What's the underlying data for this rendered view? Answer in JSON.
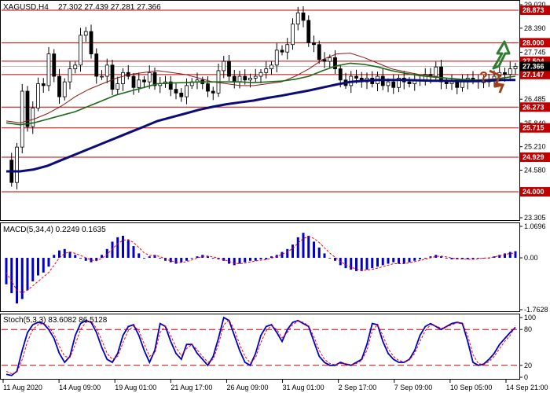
{
  "header": {
    "symbol": "XAGUSD,H4",
    "ohlc": "27.302 27.439 27.281 27.366"
  },
  "colors": {
    "candles": "#000000",
    "ma_fast": "#8b1a1a",
    "ma_mid": "#1a6b1a",
    "ma_slow": "#0b0b7a",
    "resistance": "#c00000",
    "price_tag": "#000000",
    "macd_hist": "#0000c8",
    "macd_signal": "#ff0000",
    "stoch_main": "#0000c8",
    "stoch_signal": "#ff0000",
    "arrow_up": "#2e7d32",
    "arrow_down": "#a0401a",
    "question": "#a0401a"
  },
  "chart_data": [
    {
      "type": "candlestick",
      "panel": "price",
      "title": "XAGUSD,H4",
      "ohlc_last": {
        "open": 27.302,
        "high": 27.439,
        "low": 27.281,
        "close": 27.366
      },
      "yticks": [
        "29.020",
        "28.390",
        "27.745",
        "27.100",
        "26.485",
        "25.840",
        "25.210",
        "24.580",
        "23.950",
        "23.305"
      ],
      "ylim": [
        23.305,
        29.02
      ],
      "levels": [
        {
          "value": 28.873,
          "label": "28.873"
        },
        {
          "value": 28.0,
          "label": "28.000"
        },
        {
          "value": 27.504,
          "label": "27.504"
        },
        {
          "value": 27.147,
          "label": "27.147"
        },
        {
          "value": 26.273,
          "label": "26.273"
        },
        {
          "value": 25.715,
          "label": "25.715"
        },
        {
          "value": 24.929,
          "label": "24.929"
        },
        {
          "value": 24.0,
          "label": "24.000"
        }
      ],
      "current_price": {
        "value": 27.366,
        "label": "27.366"
      },
      "xticks": [
        "11 Aug 2020",
        "14 Aug 09:00",
        "19 Aug 01:00",
        "21 Aug 17:00",
        "26 Aug 09:00",
        "31 Aug 01:00",
        "2 Sep 17:00",
        "7 Sep 09:00",
        "10 Sep 05:00",
        "14 Sep 21:00"
      ],
      "close_path": [
        24.85,
        24.25,
        25.2,
        26.7,
        25.75,
        26.25,
        26.9,
        26.85,
        27.7,
        27.1,
        26.55,
        26.95,
        27.3,
        27.4,
        28.2,
        28.3,
        27.7,
        27.1,
        27.1,
        27.4,
        26.75,
        26.9,
        27.2,
        27.1,
        26.8,
        27.0,
        26.95,
        27.2,
        26.85,
        26.9,
        26.95,
        26.75,
        26.65,
        26.55,
        26.85,
        26.95,
        27.0,
        26.9,
        26.7,
        26.65,
        27.25,
        27.5,
        27.1,
        26.95,
        27.1,
        27.0,
        27.05,
        27.1,
        27.2,
        27.3,
        27.4,
        27.8,
        27.75,
        27.95,
        28.5,
        28.8,
        28.6,
        28.0,
        27.95,
        27.55,
        27.5,
        27.6,
        27.3,
        27.0,
        26.85,
        27.1,
        27.05,
        26.95,
        27.05,
        26.9,
        27.1,
        26.85,
        26.95,
        26.8,
        27.05,
        26.95,
        26.9,
        27.0,
        27.0,
        27.15,
        27.1,
        27.35,
        26.95,
        26.9,
        26.95,
        26.8,
        26.95,
        27.05,
        27.0,
        26.95,
        26.95,
        27.0,
        27.1,
        27.2,
        27.15,
        27.3,
        27.366
      ],
      "series": [
        {
          "key": "ma_fast",
          "values": [
            25.9,
            25.85,
            25.95,
            26.1,
            26.3,
            26.55,
            26.75,
            26.9,
            27.05,
            27.15,
            27.2,
            27.25,
            27.2,
            27.15,
            27.05,
            26.95,
            26.9,
            26.85,
            26.85,
            26.9,
            26.95,
            27.1,
            27.3,
            27.55,
            27.7,
            27.72,
            27.6,
            27.45,
            27.3,
            27.22,
            27.15,
            27.1,
            27.05,
            27.0,
            27.0,
            27.02,
            27.05,
            27.1
          ]
        },
        {
          "key": "ma_mid",
          "values": [
            25.85,
            25.8,
            25.85,
            25.95,
            26.05,
            26.15,
            26.3,
            26.45,
            26.6,
            26.7,
            26.8,
            26.9,
            26.92,
            26.93,
            26.95,
            26.95,
            26.95,
            26.95,
            26.93,
            26.95,
            26.97,
            27.02,
            27.1,
            27.25,
            27.38,
            27.45,
            27.42,
            27.35,
            27.25,
            27.18,
            27.12,
            27.08,
            27.05,
            27.02,
            27.0,
            27.0,
            27.05,
            27.1
          ]
        },
        {
          "key": "ma_slow",
          "values": [
            24.55,
            24.55,
            24.6,
            24.7,
            24.85,
            25.0,
            25.15,
            25.3,
            25.45,
            25.6,
            25.75,
            25.9,
            26.0,
            26.1,
            26.2,
            26.28,
            26.35,
            26.4,
            26.45,
            26.52,
            26.58,
            26.65,
            26.72,
            26.8,
            26.88,
            26.95,
            26.98,
            27.0,
            27.0,
            27.0,
            26.99,
            26.98,
            26.98,
            26.97,
            26.97,
            26.98,
            27.0,
            27.0
          ]
        }
      ]
    },
    {
      "type": "bar",
      "panel": "macd",
      "title": "MACD(5,34,4) 0.2249 0.1635",
      "yticks": [
        "1.0696",
        "0.00",
        "-1.7628"
      ],
      "ylim": [
        -1.7628,
        1.0696
      ],
      "values": [
        -0.9,
        -1.2,
        -1.55,
        -1.4,
        -1.1,
        -0.8,
        -0.6,
        -0.5,
        -0.3,
        0.1,
        0.25,
        0.3,
        0.2,
        0.1,
        0.0,
        -0.1,
        -0.15,
        -0.1,
        0.1,
        0.3,
        0.55,
        0.7,
        0.75,
        0.6,
        0.4,
        0.15,
        0.0,
        0.05,
        0.1,
        0.0,
        -0.1,
        -0.15,
        -0.2,
        -0.15,
        -0.1,
        0.0,
        0.05,
        0.1,
        0.05,
        0.0,
        -0.05,
        -0.1,
        -0.2,
        -0.25,
        -0.2,
        -0.15,
        -0.1,
        -0.1,
        -0.05,
        -0.05,
        0.05,
        0.1,
        0.2,
        0.3,
        0.45,
        0.7,
        0.85,
        0.75,
        0.55,
        0.35,
        0.15,
        0.0,
        -0.1,
        -0.25,
        -0.35,
        -0.4,
        -0.45,
        -0.45,
        -0.4,
        -0.35,
        -0.3,
        -0.25,
        -0.2,
        -0.15,
        -0.2,
        -0.2,
        -0.15,
        -0.1,
        -0.05,
        0.0,
        0.05,
        0.1,
        0.05,
        0.0,
        -0.05,
        -0.05,
        -0.05,
        -0.05,
        -0.05,
        0.0,
        0.0,
        0.0,
        0.05,
        0.1,
        0.15,
        0.2,
        0.225
      ],
      "signal": [
        -0.5,
        -0.8,
        -1.1,
        -1.2,
        -1.1,
        -0.95,
        -0.8,
        -0.65,
        -0.5,
        -0.25,
        0.0,
        0.15,
        0.2,
        0.15,
        0.08,
        0.0,
        -0.07,
        -0.1,
        -0.02,
        0.12,
        0.3,
        0.48,
        0.6,
        0.62,
        0.52,
        0.35,
        0.17,
        0.08,
        0.08,
        0.04,
        -0.04,
        -0.1,
        -0.15,
        -0.16,
        -0.13,
        -0.07,
        -0.01,
        0.05,
        0.06,
        0.03,
        -0.01,
        -0.06,
        -0.12,
        -0.18,
        -0.2,
        -0.18,
        -0.14,
        -0.11,
        -0.08,
        -0.06,
        -0.01,
        0.05,
        0.12,
        0.2,
        0.32,
        0.5,
        0.66,
        0.72,
        0.66,
        0.52,
        0.34,
        0.16,
        0.02,
        -0.12,
        -0.24,
        -0.32,
        -0.38,
        -0.42,
        -0.42,
        -0.39,
        -0.35,
        -0.3,
        -0.25,
        -0.2,
        -0.2,
        -0.2,
        -0.17,
        -0.13,
        -0.09,
        -0.05,
        0.0,
        0.05,
        0.06,
        0.03,
        -0.01,
        -0.03,
        -0.04,
        -0.05,
        -0.05,
        -0.03,
        -0.01,
        0.0,
        0.03,
        0.07,
        0.11,
        0.15,
        0.1635
      ]
    },
    {
      "type": "line",
      "panel": "stochastic",
      "title": "Stoch(5,3,3) 83.6082 86.5128",
      "yticks": [
        "100",
        "80",
        "20",
        "0"
      ],
      "ylim": [
        0,
        100
      ],
      "levels": [
        80,
        20
      ],
      "series": [
        {
          "key": "stoch_main",
          "values": [
            5,
            3,
            10,
            45,
            75,
            88,
            92,
            90,
            80,
            65,
            40,
            25,
            35,
            70,
            90,
            95,
            92,
            75,
            50,
            30,
            25,
            40,
            70,
            85,
            88,
            70,
            45,
            25,
            45,
            90,
            85,
            60,
            40,
            30,
            55,
            55,
            40,
            30,
            20,
            35,
            65,
            100,
            95,
            70,
            45,
            25,
            20,
            40,
            70,
            85,
            88,
            75,
            60,
            80,
            92,
            95,
            90,
            85,
            60,
            35,
            25,
            20,
            20,
            25,
            22,
            20,
            25,
            30,
            55,
            90,
            88,
            60,
            40,
            30,
            25,
            25,
            30,
            45,
            70,
            85,
            90,
            85,
            80,
            85,
            90,
            92,
            90,
            60,
            25,
            20,
            22,
            30,
            40,
            55,
            65,
            75,
            83.6
          ]
        },
        {
          "key": "stoch_signal",
          "values": [
            10,
            6,
            8,
            30,
            60,
            80,
            88,
            90,
            85,
            72,
            52,
            35,
            33,
            55,
            80,
            92,
            94,
            82,
            62,
            40,
            30,
            35,
            58,
            78,
            86,
            78,
            56,
            35,
            40,
            75,
            86,
            70,
            50,
            36,
            48,
            55,
            46,
            35,
            25,
            30,
            55,
            88,
            96,
            80,
            55,
            35,
            24,
            33,
            58,
            78,
            86,
            80,
            66,
            75,
            88,
            94,
            92,
            86,
            68,
            45,
            30,
            23,
            21,
            23,
            23,
            21,
            23,
            28,
            45,
            78,
            88,
            70,
            48,
            35,
            28,
            26,
            29,
            40,
            60,
            78,
            88,
            86,
            82,
            84,
            88,
            91,
            91,
            70,
            38,
            23,
            21,
            26,
            35,
            48,
            60,
            70,
            86.5
          ]
        }
      ]
    }
  ]
}
